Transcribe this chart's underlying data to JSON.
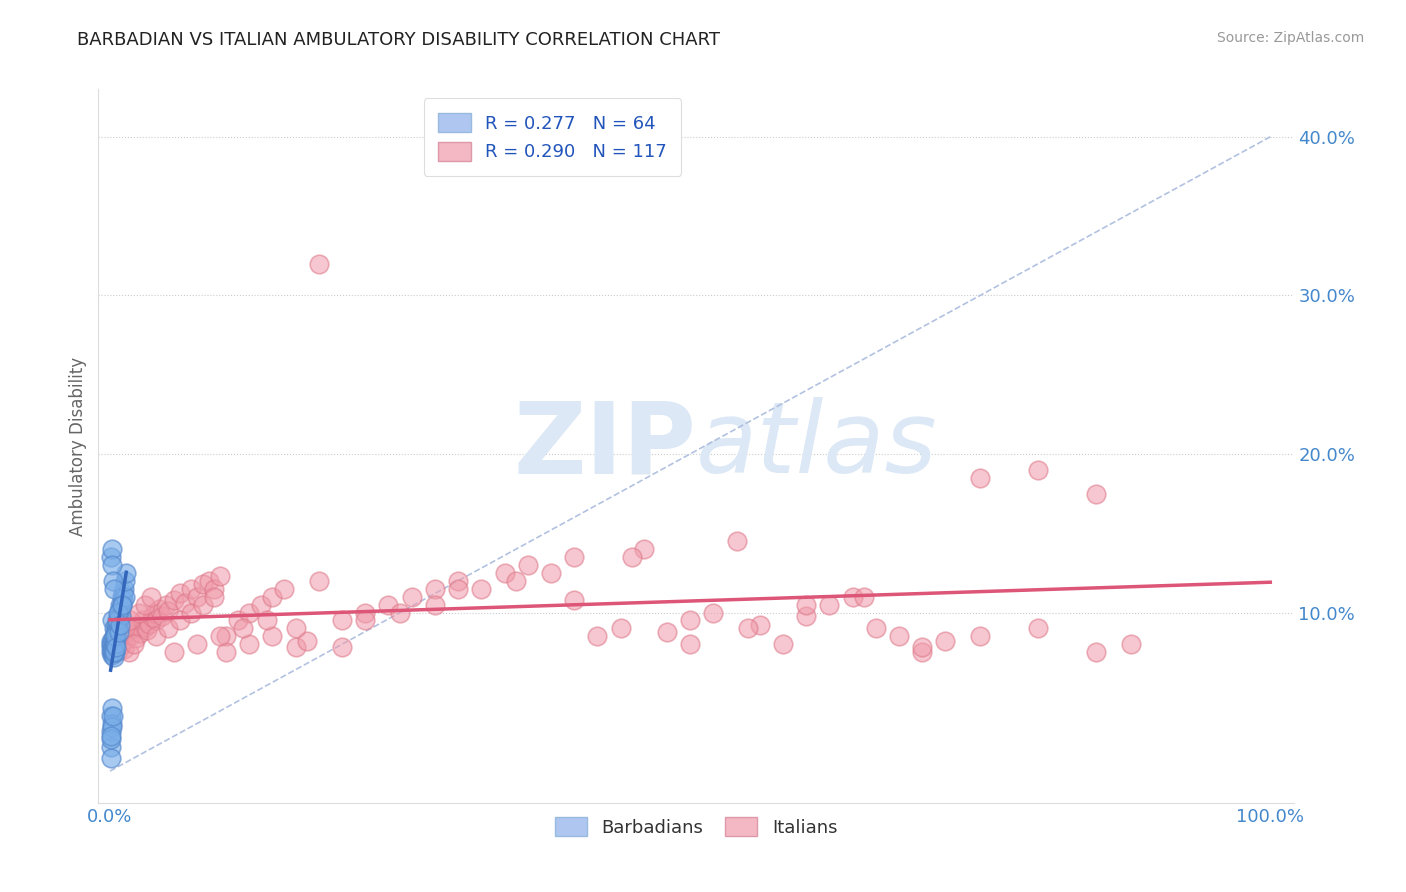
{
  "title": "BARBADIAN VS ITALIAN AMBULATORY DISABILITY CORRELATION CHART",
  "source_text": "Source: ZipAtlas.com",
  "ylabel": "Ambulatory Disability",
  "barbadian_color": "#7aaee8",
  "barbadian_edge": "#5588cc",
  "italian_color": "#f09aaa",
  "italian_edge": "#dd7788",
  "barbadian_reg_color": "#3366bb",
  "italian_reg_color": "#dd5577",
  "background_color": "#ffffff",
  "grid_color": "#cccccc",
  "ref_line_color": "#aabbdd",
  "watermark_color": "#dce8f5",
  "legend_box_colors": [
    "#aec6f0",
    "#f4b8c4"
  ],
  "legend_text_color": "#2255bb",
  "ytick_color": "#4488cc",
  "xtick_color": "#4488cc",
  "title_color": "#222222",
  "source_color": "#999999",
  "ylabel_color": "#666666",
  "xlim": [
    0,
    100
  ],
  "ylim": [
    0,
    42
  ],
  "ytick_positions": [
    10,
    20,
    30,
    40
  ],
  "ytick_labels": [
    "10.0%",
    "20.0%",
    "30.0%",
    "40.0%"
  ],
  "xtick_positions": [
    0,
    100
  ],
  "xtick_labels": [
    "0.0%",
    "100.0%"
  ],
  "R_barbadian": "0.277",
  "N_barbadian": "64",
  "R_italian": "0.290",
  "N_italian": "117",
  "barbadians_x": [
    0.05,
    0.08,
    0.1,
    0.12,
    0.14,
    0.16,
    0.18,
    0.2,
    0.22,
    0.24,
    0.26,
    0.28,
    0.3,
    0.32,
    0.34,
    0.36,
    0.38,
    0.4,
    0.42,
    0.44,
    0.46,
    0.48,
    0.5,
    0.55,
    0.6,
    0.65,
    0.7,
    0.75,
    0.8,
    0.85,
    0.9,
    0.95,
    1.0,
    1.05,
    1.1,
    1.15,
    1.2,
    1.25,
    1.3,
    1.4,
    0.1,
    0.15,
    0.2,
    0.25,
    0.3,
    0.35,
    0.4,
    0.45,
    0.5,
    0.6,
    0.7,
    0.8,
    0.9,
    1.0,
    0.07,
    0.09,
    0.13,
    0.17,
    0.21,
    0.27,
    0.05,
    0.06,
    0.08,
    0.12
  ],
  "barbadians_y": [
    7.8,
    8.2,
    7.5,
    8.0,
    7.3,
    9.5,
    7.6,
    8.1,
    7.9,
    7.4,
    8.3,
    7.7,
    8.5,
    7.2,
    8.0,
    7.8,
    9.0,
    8.2,
    7.6,
    8.8,
    7.5,
    9.2,
    8.4,
    8.7,
    9.0,
    9.3,
    9.5,
    9.8,
    10.0,
    10.2,
    10.5,
    9.8,
    11.0,
    10.5,
    11.2,
    10.8,
    11.5,
    11.0,
    12.0,
    12.5,
    13.5,
    14.0,
    13.0,
    12.0,
    11.5,
    7.5,
    8.0,
    8.5,
    7.8,
    9.5,
    10.0,
    8.8,
    9.2,
    10.5,
    3.5,
    2.5,
    4.0,
    3.0,
    2.8,
    3.5,
    1.5,
    0.8,
    2.0,
    2.2
  ],
  "italians_x": [
    0.3,
    0.5,
    0.6,
    0.7,
    0.8,
    0.9,
    1.0,
    1.1,
    1.2,
    1.4,
    1.5,
    1.6,
    1.8,
    2.0,
    2.2,
    2.4,
    2.6,
    2.8,
    3.0,
    3.2,
    3.4,
    3.6,
    3.8,
    4.0,
    4.2,
    4.5,
    4.8,
    5.0,
    5.5,
    6.0,
    6.5,
    7.0,
    7.5,
    8.0,
    8.5,
    9.0,
    9.5,
    10.0,
    11.0,
    12.0,
    13.0,
    14.0,
    15.0,
    16.0,
    17.0,
    18.0,
    20.0,
    22.0,
    24.0,
    26.0,
    28.0,
    30.0,
    32.0,
    34.0,
    36.0,
    38.0,
    40.0,
    42.0,
    44.0,
    46.0,
    48.0,
    50.0,
    52.0,
    54.0,
    56.0,
    58.0,
    60.0,
    62.0,
    64.0,
    66.0,
    68.0,
    70.0,
    72.0,
    0.4,
    0.8,
    1.3,
    1.7,
    2.1,
    2.5,
    3.0,
    3.5,
    4.0,
    5.0,
    6.0,
    7.0,
    8.0,
    9.0,
    10.0,
    12.0,
    14.0,
    16.0,
    18.0,
    20.0,
    22.0,
    25.0,
    28.0,
    30.0,
    35.0,
    40.0,
    45.0,
    50.0,
    55.0,
    60.0,
    65.0,
    70.0,
    75.0,
    80.0,
    85.0,
    88.0,
    75.0,
    80.0,
    85.0,
    5.5,
    7.5,
    9.5,
    11.5,
    13.5
  ],
  "italians_y": [
    7.5,
    7.8,
    8.0,
    7.6,
    8.2,
    7.9,
    8.5,
    8.1,
    7.7,
    8.3,
    8.8,
    7.5,
    8.6,
    9.0,
    8.4,
    9.2,
    8.7,
    9.5,
    9.1,
    8.9,
    9.3,
    9.7,
    10.0,
    9.5,
    10.2,
    9.8,
    10.5,
    10.1,
    10.8,
    11.2,
    10.6,
    11.5,
    11.0,
    11.8,
    12.0,
    11.5,
    12.3,
    8.5,
    9.5,
    10.0,
    10.5,
    11.0,
    11.5,
    7.8,
    8.2,
    32.0,
    9.5,
    10.0,
    10.5,
    11.0,
    11.5,
    12.0,
    11.5,
    12.5,
    13.0,
    12.5,
    13.5,
    8.5,
    9.0,
    14.0,
    8.8,
    9.5,
    10.0,
    14.5,
    9.2,
    8.0,
    9.8,
    10.5,
    11.0,
    9.0,
    8.5,
    7.5,
    8.2,
    8.0,
    8.5,
    9.0,
    9.5,
    8.0,
    10.0,
    10.5,
    11.0,
    8.5,
    9.0,
    9.5,
    10.0,
    10.5,
    11.0,
    7.5,
    8.0,
    8.5,
    9.0,
    12.0,
    7.8,
    9.5,
    10.0,
    10.5,
    11.5,
    12.0,
    10.8,
    13.5,
    8.0,
    9.0,
    10.5,
    11.0,
    7.8,
    8.5,
    9.0,
    7.5,
    8.0,
    18.5,
    19.0,
    17.5,
    7.5,
    8.0,
    8.5,
    9.0,
    9.5
  ]
}
